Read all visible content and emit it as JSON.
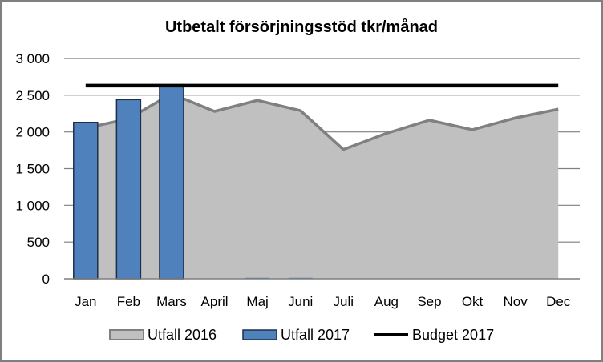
{
  "chart_data": {
    "type": "area",
    "title": "Utbetalt försörjningsstöd tkr/månad",
    "xlabel": "",
    "ylabel": "",
    "categories": [
      "Jan",
      "Feb",
      "Mars",
      "April",
      "Maj",
      "Juni",
      "Juli",
      "Aug",
      "Sep",
      "Okt",
      "Nov",
      "Dec"
    ],
    "ylim": [
      0,
      3000
    ],
    "yticks": [
      0,
      500,
      1000,
      1500,
      2000,
      2500,
      3000
    ],
    "ytick_labels": [
      "0",
      "500",
      "1 000",
      "1 500",
      "2 000",
      "2 500",
      "3 000"
    ],
    "grid": true,
    "legend_position": "bottom",
    "series": [
      {
        "name": "Utfall 2016",
        "type": "area",
        "color": "#c0c0c0",
        "line_color": "#808080",
        "values": [
          2050,
          2180,
          2520,
          2280,
          2430,
          2290,
          1760,
          1980,
          2160,
          2030,
          2190,
          2310
        ]
      },
      {
        "name": "Utfall 2017",
        "type": "bar",
        "color": "#4f81bd",
        "border_color": "#1f2f4a",
        "values": [
          2130,
          2440,
          2620,
          0,
          0,
          0,
          0,
          0,
          0,
          0,
          0,
          0
        ]
      },
      {
        "name": "Budget 2017",
        "type": "line",
        "color": "#000000",
        "values": [
          2630,
          2630,
          2630,
          2630,
          2630,
          2630,
          2630,
          2630,
          2630,
          2630,
          2630,
          2630
        ]
      }
    ]
  }
}
